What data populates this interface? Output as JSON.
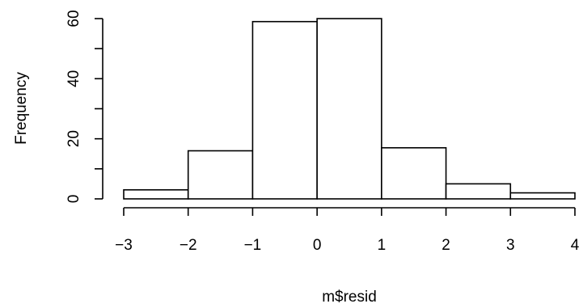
{
  "chart_data": {
    "type": "bar",
    "title": "",
    "xlabel": "m$resid",
    "ylabel": "Frequency",
    "bins": [
      {
        "from": -3,
        "to": -2,
        "count": 3
      },
      {
        "from": -2,
        "to": -1,
        "count": 16
      },
      {
        "from": -1,
        "to": 0,
        "count": 59
      },
      {
        "from": 0,
        "to": 1,
        "count": 60
      },
      {
        "from": 1,
        "to": 2,
        "count": 17
      },
      {
        "from": 2,
        "to": 3,
        "count": 5
      },
      {
        "from": 3,
        "to": 4,
        "count": 2
      }
    ],
    "xlim": [
      -3,
      4
    ],
    "ylim": [
      0,
      60
    ],
    "xticks": [
      -3,
      -2,
      -1,
      0,
      1,
      2,
      3,
      4
    ],
    "xtick_labels": [
      "−3",
      "−2",
      "−1",
      "0",
      "1",
      "2",
      "3",
      "4"
    ],
    "yticks": [
      0,
      10,
      20,
      30,
      40,
      50,
      60
    ],
    "ytick_labels": [
      "0",
      "",
      "20",
      "",
      "40",
      "",
      "60"
    ],
    "grid": false,
    "colors": {
      "bar_fill": "#ffffff",
      "bar_stroke": "#000000"
    }
  }
}
